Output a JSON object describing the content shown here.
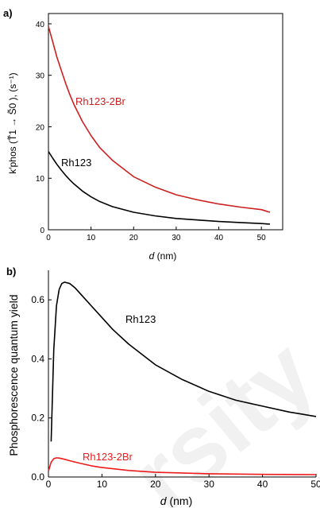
{
  "chart_data": [
    {
      "panel_label": "a)",
      "type": "line",
      "xlabel_italic": "d",
      "xlabel_rest": " (nm)",
      "ylabel": "k′phos (T̃1 → S̃0 ), (s⁻¹)",
      "xlim": [
        0,
        55
      ],
      "ylim": [
        0,
        42
      ],
      "xticks": [
        0,
        10,
        20,
        30,
        40,
        50
      ],
      "yticks": [
        0,
        10,
        20,
        30,
        40
      ],
      "series": [
        {
          "name": "Rh123-2Br",
          "color": "#cc2020",
          "x": [
            0,
            1,
            2,
            3,
            4,
            5,
            6,
            8,
            10,
            12,
            15,
            20,
            25,
            30,
            35,
            40,
            45,
            50,
            52
          ],
          "y": [
            39.5,
            36.5,
            33.5,
            31,
            28.5,
            26.3,
            24.3,
            21,
            18.3,
            16,
            13.5,
            10.3,
            8.3,
            6.8,
            5.8,
            5,
            4.4,
            3.9,
            3.4
          ]
        },
        {
          "name": "Rh123",
          "color": "#000000",
          "x": [
            0,
            1,
            2,
            3,
            4,
            5,
            6,
            8,
            10,
            12,
            15,
            20,
            25,
            30,
            35,
            40,
            45,
            50,
            52
          ],
          "y": [
            15.2,
            13.9,
            12.7,
            11.6,
            10.6,
            9.7,
            8.9,
            7.5,
            6.4,
            5.5,
            4.5,
            3.4,
            2.7,
            2.2,
            1.9,
            1.6,
            1.4,
            1.2,
            1.1
          ]
        }
      ]
    },
    {
      "panel_label": "b)",
      "type": "line",
      "xlabel_italic": "d",
      "xlabel_rest": " (nm)",
      "ylabel": "Phosphorescence quantum yield",
      "xlim": [
        0,
        50
      ],
      "ylim": [
        0,
        0.7
      ],
      "xticks": [
        0,
        10,
        20,
        30,
        40,
        50
      ],
      "yticks": [
        0.0,
        0.2,
        0.4,
        0.6
      ],
      "series": [
        {
          "name": "Rh123",
          "color": "#000000",
          "x": [
            0.5,
            1,
            1.5,
            2,
            2.5,
            3,
            4,
            5,
            6,
            8,
            10,
            12,
            15,
            20,
            25,
            30,
            35,
            40,
            45,
            50
          ],
          "y": [
            0.12,
            0.43,
            0.58,
            0.635,
            0.655,
            0.66,
            0.655,
            0.64,
            0.62,
            0.58,
            0.54,
            0.5,
            0.45,
            0.38,
            0.33,
            0.29,
            0.26,
            0.24,
            0.22,
            0.205
          ]
        },
        {
          "name": "Rh123-2Br",
          "color": "#ee1c1c",
          "x": [
            0,
            0.5,
            1,
            1.5,
            2,
            3,
            4,
            6,
            8,
            10,
            15,
            20,
            30,
            40,
            50
          ],
          "y": [
            0.02,
            0.05,
            0.062,
            0.065,
            0.064,
            0.06,
            0.055,
            0.046,
            0.038,
            0.032,
            0.022,
            0.016,
            0.011,
            0.009,
            0.008
          ]
        }
      ]
    }
  ],
  "watermark": "rsity"
}
